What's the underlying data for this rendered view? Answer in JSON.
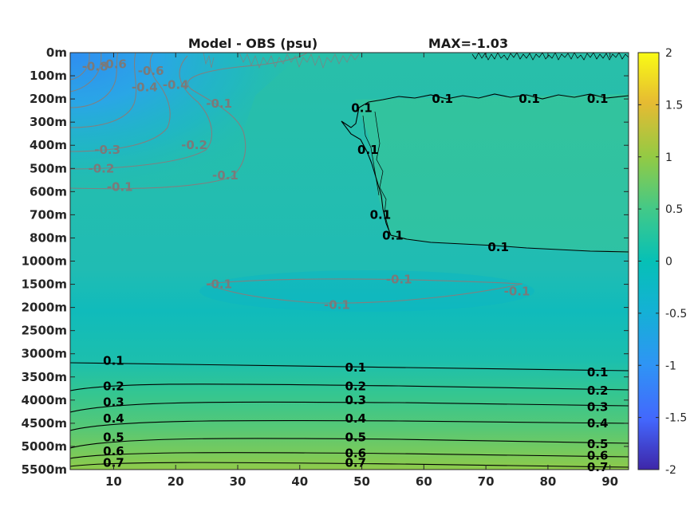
{
  "chart_data": {
    "type": "heatmap",
    "title": "Model - OBS (psu)",
    "annotation": "MAX=-1.03",
    "x_ticks": [
      10,
      20,
      30,
      40,
      50,
      60,
      70,
      80,
      90
    ],
    "xlim": [
      3,
      93
    ],
    "y_ticks": [
      "0m",
      "100m",
      "200m",
      "300m",
      "400m",
      "500m",
      "600m",
      "700m",
      "800m",
      "1000m",
      "1500m",
      "2000m",
      "2500m",
      "3000m",
      "3500m",
      "4000m",
      "4500m",
      "5000m",
      "5500m"
    ],
    "colorbar": {
      "min": -2,
      "max": 2,
      "ticks": [
        "2",
        "1.5",
        "1",
        "0.5",
        "0",
        "-0.5",
        "-1",
        "-1.5",
        "-2"
      ]
    },
    "contours": [
      {
        "level": 0.1,
        "labels": [
          {
            "x": 10,
            "y": 13.3,
            "text": "0.1"
          },
          {
            "x": 49,
            "y": 13.6,
            "text": "0.1"
          },
          {
            "x": 88,
            "y": 13.8,
            "text": "0.1"
          }
        ]
      },
      {
        "level": 0.2,
        "labels": [
          {
            "x": 10,
            "y": 14.4,
            "text": "0.2"
          },
          {
            "x": 49,
            "y": 14.4,
            "text": "0.2"
          },
          {
            "x": 88,
            "y": 14.6,
            "text": "0.2"
          }
        ]
      },
      {
        "level": 0.3,
        "labels": [
          {
            "x": 10,
            "y": 15.1,
            "text": "0.3"
          },
          {
            "x": 49,
            "y": 15.0,
            "text": "0.3"
          },
          {
            "x": 88,
            "y": 15.3,
            "text": "0.3"
          }
        ]
      },
      {
        "level": 0.4,
        "labels": [
          {
            "x": 10,
            "y": 15.8,
            "text": "0.4"
          },
          {
            "x": 49,
            "y": 15.8,
            "text": "0.4"
          },
          {
            "x": 88,
            "y": 16.0,
            "text": "0.4"
          }
        ]
      },
      {
        "level": 0.5,
        "labels": [
          {
            "x": 10,
            "y": 16.6,
            "text": "0.5"
          },
          {
            "x": 49,
            "y": 16.6,
            "text": "0.5"
          },
          {
            "x": 88,
            "y": 16.9,
            "text": "0.5"
          }
        ]
      },
      {
        "level": 0.6,
        "labels": [
          {
            "x": 10,
            "y": 17.2,
            "text": "0.6"
          },
          {
            "x": 49,
            "y": 17.3,
            "text": "0.6"
          },
          {
            "x": 88,
            "y": 17.4,
            "text": "0.6"
          }
        ]
      },
      {
        "level": 0.7,
        "labels": [
          {
            "x": 10,
            "y": 17.7,
            "text": "0.7"
          },
          {
            "x": 49,
            "y": 17.7,
            "text": "0.7"
          },
          {
            "x": 88,
            "y": 17.9,
            "text": "0.7"
          }
        ]
      },
      {
        "level": 0.1,
        "labels": [
          {
            "x": 50,
            "y": 2.4,
            "text": "0.1"
          },
          {
            "x": 63,
            "y": 2.0,
            "text": "0.1"
          },
          {
            "x": 77,
            "y": 2.0,
            "text": "0.1"
          },
          {
            "x": 88,
            "y": 2.0,
            "text": "0.1"
          },
          {
            "x": 51,
            "y": 4.2,
            "text": "0.1"
          },
          {
            "x": 53,
            "y": 7.0,
            "text": "0.1"
          },
          {
            "x": 55,
            "y": 7.9,
            "text": "0.1"
          },
          {
            "x": 72,
            "y": 8.4,
            "text": "0.1"
          }
        ]
      },
      {
        "level": -0.1,
        "labels": [
          {
            "x": 11,
            "y": 5.8,
            "text": "-0.1"
          },
          {
            "x": 28,
            "y": 5.3,
            "text": "-0.1"
          },
          {
            "x": 27,
            "y": 2.2,
            "text": "-0.1"
          },
          {
            "x": 27,
            "y": 10.0,
            "text": "-0.1"
          },
          {
            "x": 56,
            "y": 9.8,
            "text": "-0.1"
          },
          {
            "x": 46,
            "y": 10.9,
            "text": "-0.1"
          },
          {
            "x": 75,
            "y": 10.3,
            "text": "-0.1"
          }
        ]
      },
      {
        "level": -0.2,
        "labels": [
          {
            "x": 8,
            "y": 5.0,
            "text": "-0.2"
          },
          {
            "x": 23,
            "y": 4.0,
            "text": "-0.2"
          }
        ]
      },
      {
        "level": -0.3,
        "labels": [
          {
            "x": 9,
            "y": 4.2,
            "text": "-0.3"
          }
        ]
      },
      {
        "level": -0.4,
        "labels": [
          {
            "x": 15,
            "y": 1.5,
            "text": "-0.4"
          },
          {
            "x": 20,
            "y": 1.4,
            "text": "-0.4"
          }
        ]
      },
      {
        "level": -0.6,
        "labels": [
          {
            "x": 10,
            "y": 0.5,
            "text": "-0.6"
          },
          {
            "x": 16,
            "y": 0.8,
            "text": "-0.6"
          }
        ]
      },
      {
        "level": -0.8,
        "labels": [
          {
            "x": 7,
            "y": 0.6,
            "text": "-0.8"
          }
        ]
      }
    ]
  }
}
